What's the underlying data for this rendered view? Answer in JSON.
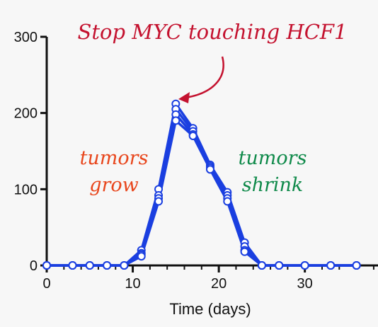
{
  "chart_data": {
    "type": "line",
    "title": "",
    "xlabel": "Time (days)",
    "ylabel": "",
    "xlim": [
      0,
      38.5
    ],
    "ylim": [
      0,
      300
    ],
    "x_ticks": [
      0,
      10,
      20,
      30
    ],
    "y_ticks": [
      0,
      100,
      200,
      300
    ],
    "grid": false,
    "x": [
      0,
      3,
      5,
      7,
      9,
      11,
      13,
      15,
      17,
      19,
      21,
      23,
      25,
      27,
      30,
      33,
      36
    ],
    "series": [
      {
        "values": [
          0,
          0,
          0,
          0,
          0,
          20,
          100,
          212,
          180,
          132,
          96,
          30,
          0,
          0,
          0,
          0,
          0
        ]
      },
      {
        "values": [
          0,
          0,
          0,
          0,
          0,
          16,
          92,
          205,
          176,
          130,
          92,
          25,
          0,
          0,
          0,
          0,
          0
        ]
      },
      {
        "values": [
          0,
          0,
          0,
          0,
          0,
          14,
          88,
          198,
          172,
          128,
          88,
          20,
          0,
          0,
          0,
          0,
          0
        ]
      },
      {
        "values": [
          0,
          0,
          0,
          0,
          0,
          12,
          84,
          190,
          170,
          126,
          84,
          18,
          0,
          0,
          0,
          0,
          0
        ]
      }
    ],
    "line_color": "#1a3fe0",
    "annotations": [
      {
        "id": "headline",
        "text": "Stop MYC touching HCF1",
        "color": "#c4122f"
      },
      {
        "id": "grow-1",
        "text": "tumors",
        "color": "#e8461c"
      },
      {
        "id": "grow-2",
        "text": "grow",
        "color": "#e8461c"
      },
      {
        "id": "shrink-1",
        "text": "tumors",
        "color": "#0f8a4a"
      },
      {
        "id": "shrink-2",
        "text": "shrink",
        "color": "#0f8a4a"
      }
    ]
  }
}
